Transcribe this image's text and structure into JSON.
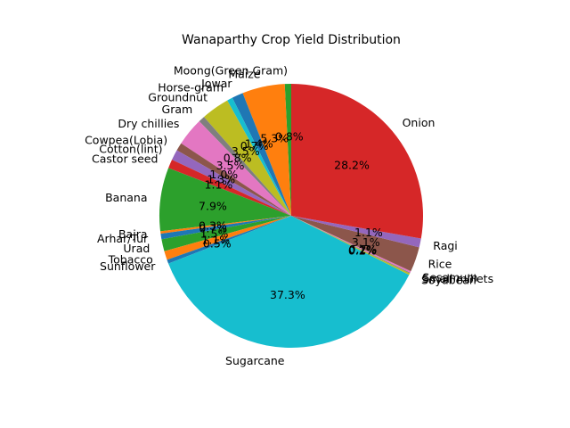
{
  "chart_data": {
    "type": "pie",
    "title": "Wanaparthy Crop Yield Distribution",
    "start_angle_deg": 90,
    "direction": "counterclockwise",
    "slices": [
      {
        "label": "Moong(Green Gram)",
        "pct": 0.8,
        "pct_label": "0.8%",
        "color": "#2ca02c"
      },
      {
        "label": "Maize",
        "pct": 5.3,
        "pct_label": "5.3%",
        "color": "#ff7f0e"
      },
      {
        "label": "Jowar",
        "pct": 1.4,
        "pct_label": "1.4%",
        "color": "#1f77b4"
      },
      {
        "label": "Horse-gram",
        "pct": 0.7,
        "pct_label": "0.7%",
        "color": "#17becf"
      },
      {
        "label": "Groundnut",
        "pct": 3.5,
        "pct_label": "3.5%",
        "color": "#bcbd22"
      },
      {
        "label": "Gram",
        "pct": 0.8,
        "pct_label": "0.8%",
        "color": "#7f7f7f"
      },
      {
        "label": "Dry chillies",
        "pct": 3.5,
        "pct_label": "3.5%",
        "color": "#e377c2"
      },
      {
        "label": "Cowpea(Lobia)",
        "pct": 1.0,
        "pct_label": "1.0%",
        "color": "#8c564b"
      },
      {
        "label": "Cotton(lint)",
        "pct": 1.3,
        "pct_label": "1.3%",
        "color": "#9467bd"
      },
      {
        "label": "Castor seed",
        "pct": 1.1,
        "pct_label": "1.1%",
        "color": "#d62728"
      },
      {
        "label": "Banana",
        "pct": 7.9,
        "pct_label": "7.9%",
        "color": "#2ca02c"
      },
      {
        "label": "Bajra",
        "pct": 0.3,
        "pct_label": "0.3%",
        "color": "#ff7f0e"
      },
      {
        "label": "Arhar/Tur",
        "pct": 0.7,
        "pct_label": "0.7%",
        "color": "#1f77b4"
      },
      {
        "label": "Urad",
        "pct": 1.5,
        "pct_label": "1.5%",
        "color": "#2ca02c"
      },
      {
        "label": "Tobacco",
        "pct": 1.1,
        "pct_label": "1.1%",
        "color": "#ff7f0e"
      },
      {
        "label": "Sunflower",
        "pct": 0.5,
        "pct_label": "0.5%",
        "color": "#1f77b4"
      },
      {
        "label": "Sugarcane",
        "pct": 37.3,
        "pct_label": "37.3%",
        "color": "#17becf"
      },
      {
        "label": "Soyabean",
        "pct": 0.2,
        "pct_label": "0.2%",
        "color": "#bcbd22"
      },
      {
        "label": "Small millets",
        "pct": 0.1,
        "pct_label": "0.1%",
        "color": "#7f7f7f"
      },
      {
        "label": "Sesamum",
        "pct": 0.2,
        "pct_label": "0.2%",
        "color": "#e377c2"
      },
      {
        "label": "Rice",
        "pct": 3.1,
        "pct_label": "3.1%",
        "color": "#8c564b"
      },
      {
        "label": "Ragi",
        "pct": 1.1,
        "pct_label": "1.1%",
        "color": "#9467bd"
      },
      {
        "label": "Onion",
        "pct": 28.2,
        "pct_label": "28.2%",
        "color": "#d62728"
      }
    ]
  }
}
